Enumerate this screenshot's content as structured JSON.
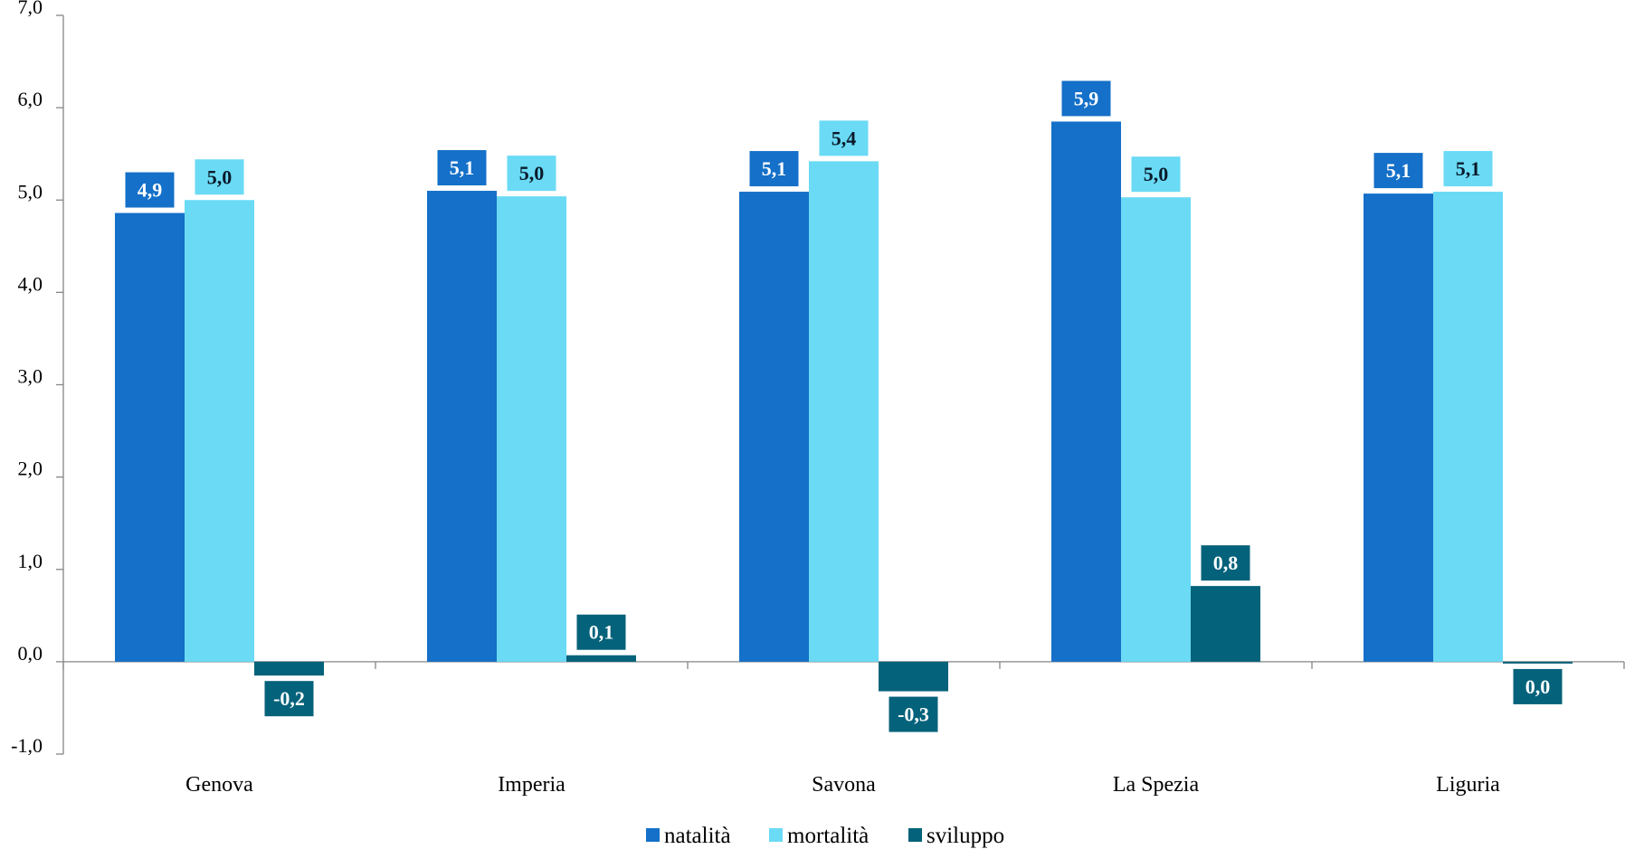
{
  "chart_data": {
    "type": "bar",
    "categories": [
      "Genova",
      "Imperia",
      "Savona",
      "La Spezia",
      "Liguria"
    ],
    "series": [
      {
        "name": "natalità",
        "color": "#1470C8",
        "values": [
          4.86,
          5.1,
          5.09,
          5.85,
          5.07
        ],
        "labels": [
          "4,9",
          "5,1",
          "5,1",
          "5,9",
          "5,1"
        ]
      },
      {
        "name": "mortalità",
        "color": "#6ADAF5",
        "values": [
          5.0,
          5.04,
          5.42,
          5.03,
          5.09
        ],
        "labels": [
          "5,0",
          "5,0",
          "5,4",
          "5,0",
          "5,1"
        ]
      },
      {
        "name": "sviluppo",
        "color": "#04627A",
        "values": [
          -0.15,
          0.07,
          -0.32,
          0.82,
          -0.02
        ],
        "labels": [
          "-0,2",
          "0,1",
          "-0,3",
          "0,8",
          "0,0"
        ]
      }
    ],
    "ylim": [
      -1.0,
      7.0
    ],
    "yticks": [
      -1.0,
      0.0,
      1.0,
      2.0,
      3.0,
      4.0,
      5.0,
      6.0,
      7.0
    ],
    "ytick_labels": [
      "-1,0",
      "0,0",
      "1,0",
      "2,0",
      "3,0",
      "4,0",
      "5,0",
      "6,0",
      "7,0"
    ],
    "title": "",
    "xlabel": "",
    "ylabel": "",
    "grid": false,
    "legend_position": "bottom"
  }
}
